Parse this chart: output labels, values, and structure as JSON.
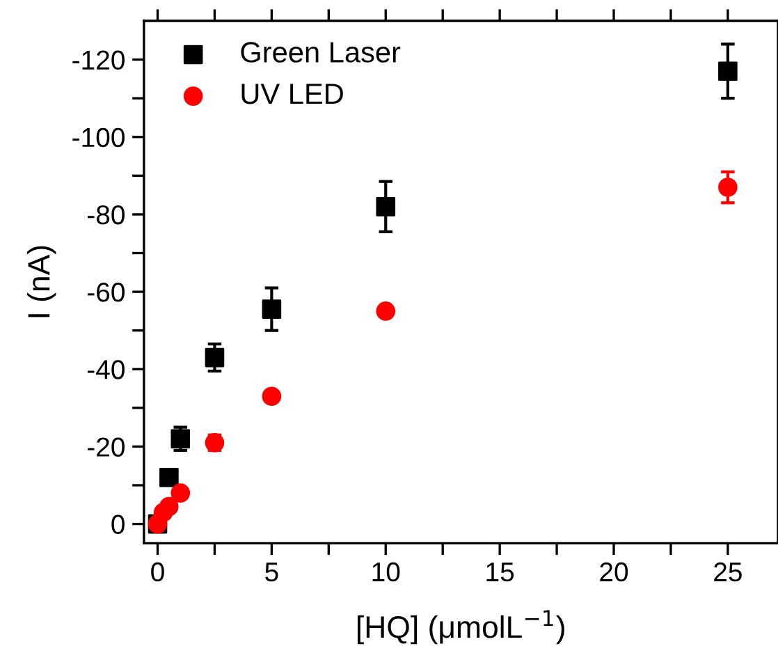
{
  "chart_data": {
    "type": "scatter",
    "xlabel": "[HQ] (μmolL$^{−1}$)",
    "ylabel": "I (nA)",
    "xlim": [
      -0.6,
      27.2
    ],
    "ylim": [
      5,
      -130
    ],
    "xticks": [
      0,
      {
        "value": 2.5,
        "label": null
      },
      5,
      {
        "value": 7.5,
        "label": null
      },
      10,
      {
        "value": 12.5,
        "label": null
      },
      15,
      {
        "value": 17.5,
        "label": null
      },
      20,
      {
        "value": 22.5,
        "label": null
      },
      25
    ],
    "yticks": [
      0,
      {
        "value": -10,
        "label": null
      },
      {
        "value": -20,
        "label": "-20"
      },
      {
        "value": -30,
        "label": null
      },
      {
        "value": -40,
        "label": "-40"
      },
      {
        "value": -50,
        "label": null
      },
      {
        "value": -60,
        "label": "-60"
      },
      {
        "value": -70,
        "label": null
      },
      {
        "value": -80,
        "label": "-80"
      },
      {
        "value": -90,
        "label": null
      },
      {
        "value": -100,
        "label": "-100"
      },
      {
        "value": -110,
        "label": null
      },
      {
        "value": -120,
        "label": "-120"
      }
    ],
    "grid": false,
    "legend": "top left",
    "x": [
      0,
      0.1,
      0.25,
      0.5,
      1,
      2.5,
      5,
      10,
      25
    ],
    "series": [
      {
        "name": "Green Laser",
        "color": "#000000",
        "marker": "square",
        "values": [
          0,
          null,
          null,
          -12,
          -22,
          -43,
          -55.5,
          -82,
          -117
        ],
        "errors": [
          null,
          null,
          null,
          null,
          3,
          3.5,
          5.5,
          6.5,
          7
        ]
      },
      {
        "name": "UV LED",
        "color": "#ff0000",
        "marker": "circle",
        "values": [
          0,
          null,
          -3,
          -4.5,
          -8,
          -21,
          -33,
          -55,
          -87
        ],
        "errors": [
          null,
          null,
          null,
          null,
          null,
          2,
          null,
          null,
          4
        ]
      }
    ]
  }
}
